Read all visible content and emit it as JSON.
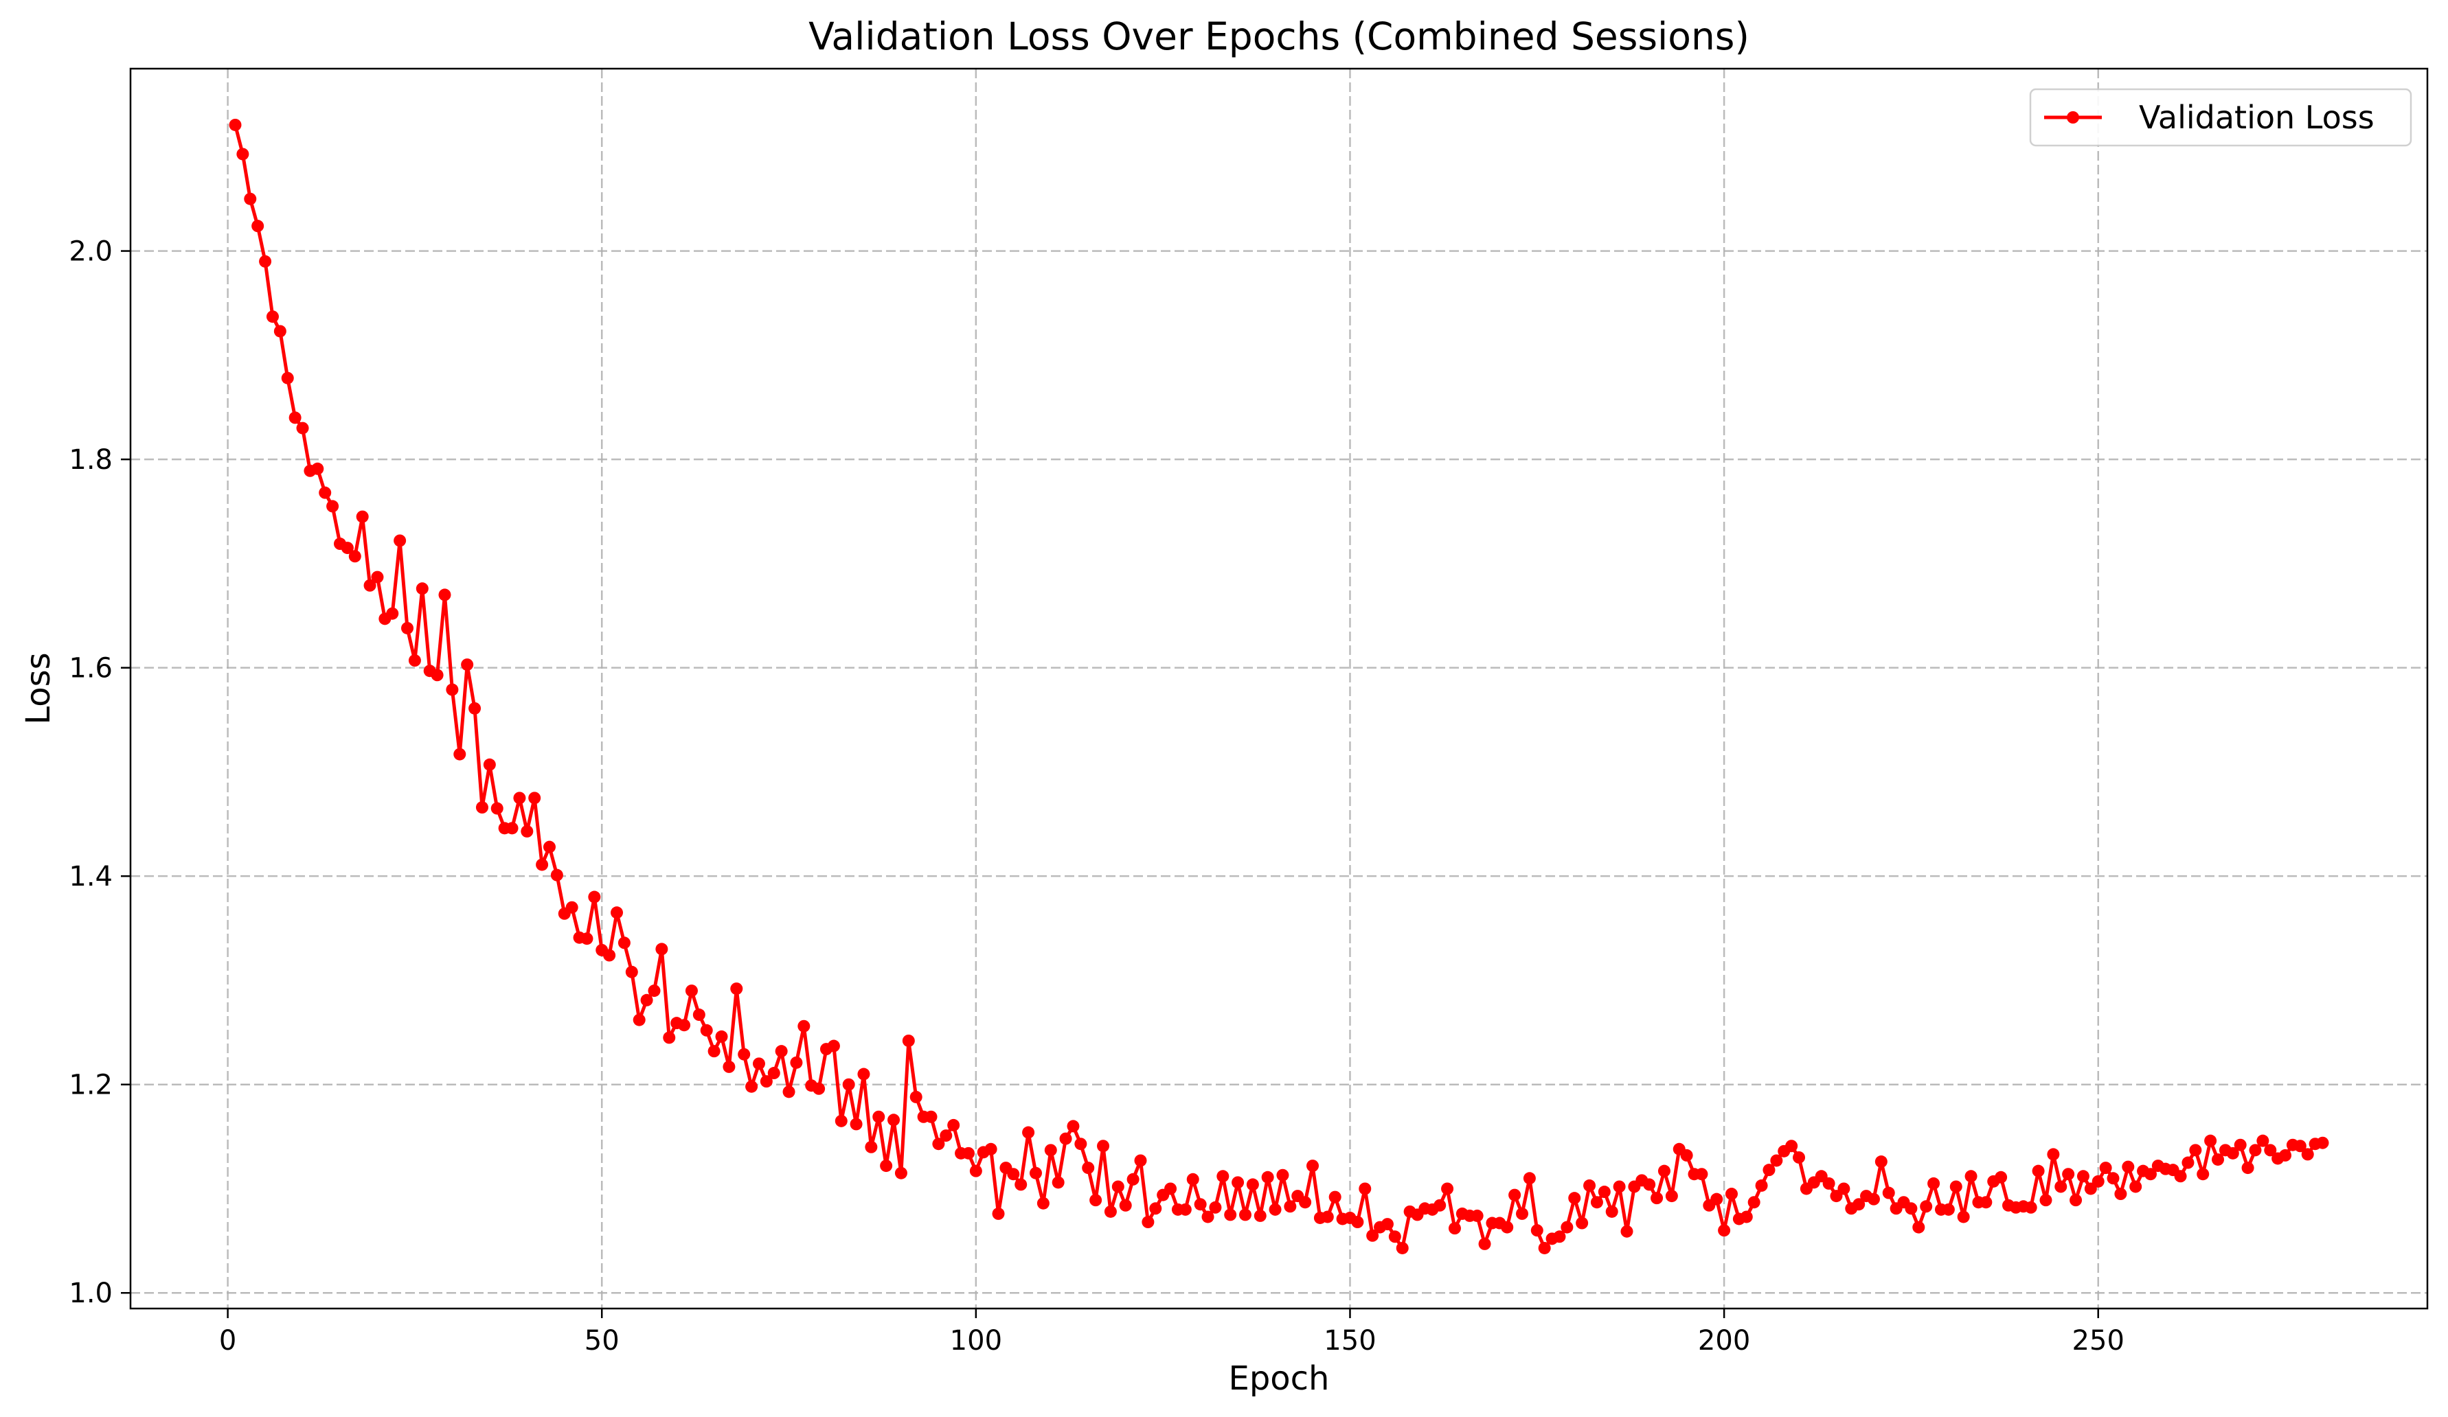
{
  "colors": {
    "series": "#ff0000",
    "background": "#ffffff",
    "grid": "#b0b0b0"
  },
  "chart_data": {
    "type": "line",
    "title": "Validation Loss Over Epochs (Combined Sessions)",
    "xlabel": "Epoch",
    "ylabel": "Loss",
    "xlim": [
      -13,
      294
    ],
    "ylim": [
      0.985,
      2.175
    ],
    "xticks": [
      0,
      50,
      100,
      150,
      200,
      250
    ],
    "xtick_labels": [
      "0",
      "50",
      "100",
      "150",
      "200",
      "250"
    ],
    "yticks": [
      1.0,
      1.2,
      1.4,
      1.6,
      1.8,
      2.0
    ],
    "ytick_labels": [
      "1.0",
      "1.2",
      "1.4",
      "1.6",
      "1.8",
      "2.0"
    ],
    "grid": true,
    "legend_position": "top-right",
    "marker": "circle",
    "series": [
      {
        "name": "Validation Loss",
        "color": "#ff0000",
        "values": [
          2.121,
          2.093,
          2.05,
          2.024,
          1.99,
          1.937,
          1.923,
          1.878,
          1.84,
          1.83,
          1.789,
          1.791,
          1.768,
          1.755,
          1.719,
          1.715,
          1.707,
          1.745,
          1.679,
          1.687,
          1.647,
          1.652,
          1.722,
          1.638,
          1.607,
          1.676,
          1.597,
          1.593,
          1.67,
          1.579,
          1.517,
          1.603,
          1.561,
          1.466,
          1.507,
          1.465,
          1.446,
          1.446,
          1.475,
          1.443,
          1.475,
          1.411,
          1.428,
          1.401,
          1.364,
          1.37,
          1.341,
          1.34,
          1.38,
          1.329,
          1.324,
          1.365,
          1.336,
          1.308,
          1.262,
          1.281,
          1.29,
          1.33,
          1.245,
          1.259,
          1.257,
          1.29,
          1.267,
          1.252,
          1.232,
          1.246,
          1.217,
          1.292,
          1.229,
          1.198,
          1.22,
          1.203,
          1.211,
          1.232,
          1.193,
          1.221,
          1.256,
          1.199,
          1.196,
          1.234,
          1.237,
          1.165,
          1.2,
          1.162,
          1.21,
          1.14,
          1.169,
          1.122,
          1.166,
          1.115,
          1.242,
          1.188,
          1.169,
          1.169,
          1.143,
          1.151,
          1.161,
          1.134,
          1.134,
          1.117,
          1.135,
          1.138,
          1.076,
          1.12,
          1.114,
          1.104,
          1.154,
          1.115,
          1.086,
          1.137,
          1.106,
          1.148,
          1.16,
          1.143,
          1.12,
          1.089,
          1.141,
          1.078,
          1.102,
          1.084,
          1.109,
          1.127,
          1.068,
          1.081,
          1.094,
          1.1,
          1.08,
          1.08,
          1.109,
          1.085,
          1.073,
          1.082,
          1.112,
          1.075,
          1.106,
          1.075,
          1.104,
          1.074,
          1.111,
          1.08,
          1.113,
          1.083,
          1.093,
          1.087,
          1.122,
          1.072,
          1.073,
          1.092,
          1.071,
          1.072,
          1.068,
          1.1,
          1.055,
          1.063,
          1.066,
          1.054,
          1.043,
          1.078,
          1.075,
          1.081,
          1.08,
          1.084,
          1.1,
          1.062,
          1.076,
          1.074,
          1.074,
          1.047,
          1.067,
          1.067,
          1.063,
          1.094,
          1.076,
          1.11,
          1.06,
          1.043,
          1.052,
          1.054,
          1.063,
          1.091,
          1.067,
          1.103,
          1.087,
          1.097,
          1.078,
          1.102,
          1.059,
          1.102,
          1.108,
          1.104,
          1.091,
          1.117,
          1.093,
          1.138,
          1.132,
          1.114,
          1.114,
          1.084,
          1.09,
          1.06,
          1.095,
          1.071,
          1.073,
          1.087,
          1.103,
          1.118,
          1.127,
          1.136,
          1.141,
          1.13,
          1.1,
          1.106,
          1.112,
          1.105,
          1.093,
          1.1,
          1.081,
          1.085,
          1.093,
          1.09,
          1.126,
          1.096,
          1.081,
          1.087,
          1.081,
          1.063,
          1.083,
          1.105,
          1.08,
          1.08,
          1.102,
          1.073,
          1.112,
          1.087,
          1.087,
          1.107,
          1.111,
          1.084,
          1.082,
          1.083,
          1.082,
          1.117,
          1.089,
          1.133,
          1.102,
          1.114,
          1.089,
          1.112,
          1.1,
          1.107,
          1.12,
          1.11,
          1.095,
          1.121,
          1.102,
          1.117,
          1.114,
          1.122,
          1.119,
          1.118,
          1.112,
          1.125,
          1.137,
          1.114,
          1.146,
          1.128,
          1.137,
          1.134,
          1.142,
          1.12,
          1.137,
          1.146,
          1.137,
          1.129,
          1.132,
          1.142,
          1.141,
          1.133,
          1.143,
          1.144
        ]
      }
    ]
  }
}
